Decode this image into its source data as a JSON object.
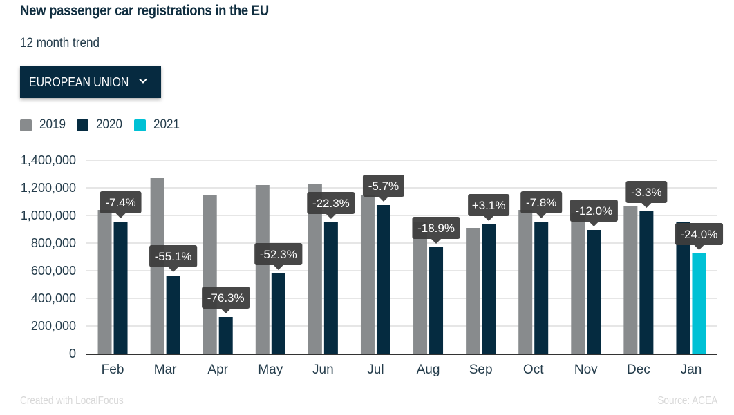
{
  "header": {
    "title": "New passenger car registrations in the EU",
    "subtitle": "12 month trend"
  },
  "selector": {
    "selected": "EUROPEAN UNION",
    "icon": "chevron-down-icon"
  },
  "footer": {
    "credit": "Created with LocalFocus",
    "source": "Source: ACEA"
  },
  "colors": {
    "2019": "#888b8d",
    "2020": "#052b40",
    "2021": "#00c1d5",
    "label_bg": "#3d3d3d",
    "grid": "#e6e6e6",
    "axis": "#333333"
  },
  "chart_data": {
    "type": "bar",
    "title": "New passenger car registrations in the EU",
    "subtitle": "12 month trend",
    "xlabel": "",
    "ylabel": "",
    "ylim": [
      0,
      1400000
    ],
    "yticks": [
      0,
      200000,
      400000,
      600000,
      800000,
      1000000,
      1200000,
      1400000
    ],
    "ytick_labels": [
      "0",
      "200,000",
      "400,000",
      "600,000",
      "800,000",
      "1,000,000",
      "1,200,000",
      "1,400,000"
    ],
    "grid": true,
    "legend": "top-left",
    "categories": [
      "Feb",
      "Mar",
      "Apr",
      "May",
      "Jun",
      "Jul",
      "Aug",
      "Sep",
      "Oct",
      "Nov",
      "Dec",
      "Jan"
    ],
    "series": [
      {
        "name": "2019",
        "values": [
          1040000,
          1270000,
          1145000,
          1220000,
          1225000,
          1145000,
          950000,
          910000,
          1040000,
          1020000,
          1070000,
          null
        ]
      },
      {
        "name": "2020",
        "values": [
          955000,
          565000,
          265000,
          580000,
          950000,
          1075000,
          770000,
          935000,
          955000,
          895000,
          1030000,
          955000
        ]
      },
      {
        "name": "2021",
        "values": [
          null,
          null,
          null,
          null,
          null,
          null,
          null,
          null,
          null,
          null,
          null,
          725000
        ]
      }
    ],
    "annotations": [
      "-7.4%",
      "-55.1%",
      "-76.3%",
      "-52.3%",
      "-22.3%",
      "-5.7%",
      "-18.9%",
      "+3.1%",
      "-7.8%",
      "-12.0%",
      "-3.3%",
      "-24.0%"
    ]
  }
}
